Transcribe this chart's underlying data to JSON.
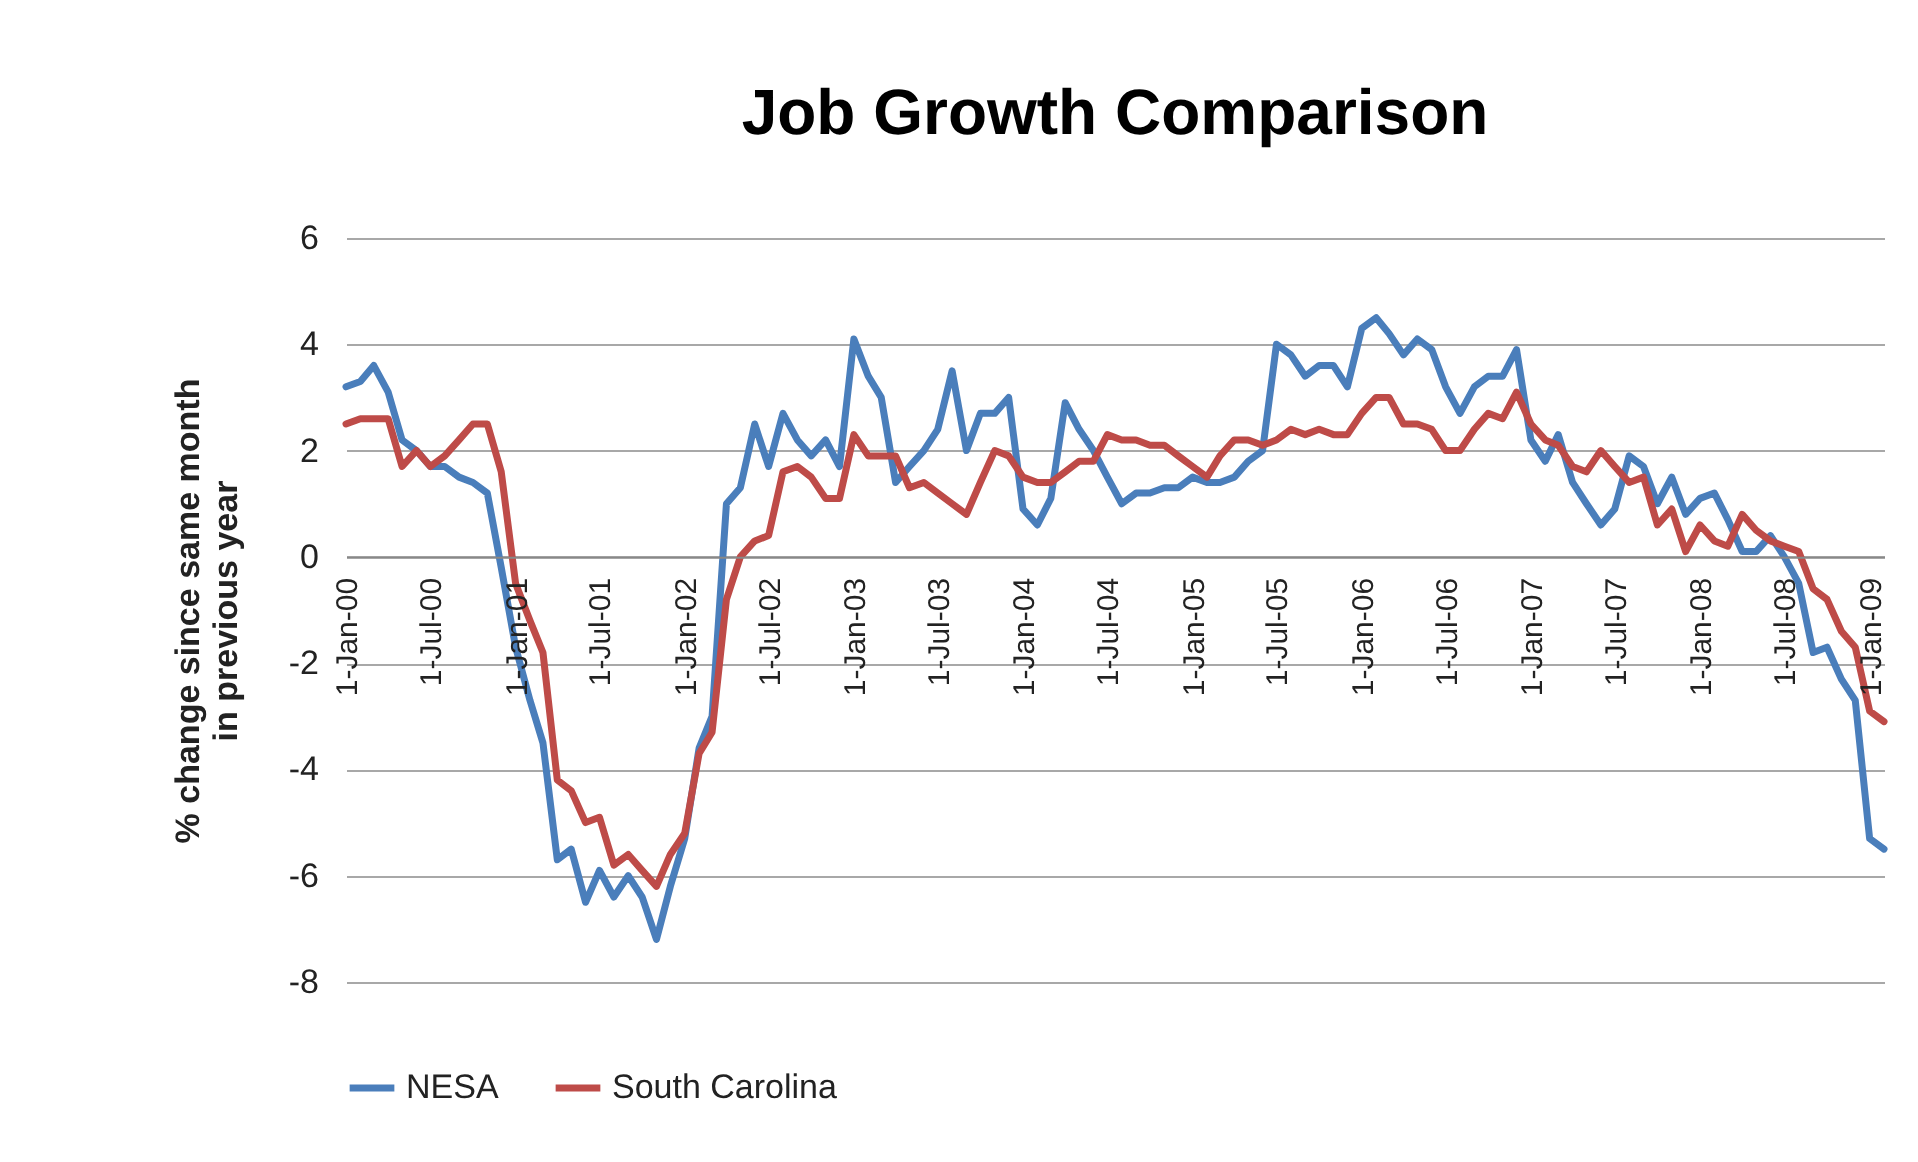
{
  "chart_data": {
    "type": "line",
    "title": "Job Growth Comparison",
    "ylabel": "% change since same month in previous year",
    "xlim": [
      "2000-01",
      "2009-02"
    ],
    "xticks": [
      {
        "value": "2000-01",
        "label": "1-Jan-00"
      },
      {
        "value": "2000-07",
        "label": "1-Jul-00"
      },
      {
        "value": "2001-01",
        "label": "1-Jan-01"
      },
      {
        "value": "2001-07",
        "label": "1-Jul-01"
      },
      {
        "value": "2002-01",
        "label": "1-Jan-02"
      },
      {
        "value": "2002-07",
        "label": "1-Jul-02"
      },
      {
        "value": "2003-01",
        "label": "1-Jan-03"
      },
      {
        "value": "2003-07",
        "label": "1-Jul-03"
      },
      {
        "value": "2004-01",
        "label": "1-Jan-04"
      },
      {
        "value": "2004-07",
        "label": "1-Jul-04"
      },
      {
        "value": "2005-01",
        "label": "1-Jan-05"
      },
      {
        "value": "2005-07",
        "label": "1-Jul-05"
      },
      {
        "value": "2006-01",
        "label": "1-Jan-06"
      },
      {
        "value": "2006-07",
        "label": "1-Jul-06"
      },
      {
        "value": "2007-01",
        "label": "1-Jan-07"
      },
      {
        "value": "2007-07",
        "label": "1-Jul-07"
      },
      {
        "value": "2008-01",
        "label": "1-Jan-08"
      },
      {
        "value": "2008-07",
        "label": "1-Jul-08"
      },
      {
        "value": "2009-01",
        "label": "1-Jan-09"
      }
    ],
    "ylim": [
      -8,
      6
    ],
    "yticks": [
      -8,
      -6,
      -4,
      -2,
      0,
      2,
      4,
      6
    ],
    "grid": "y",
    "legend": "bottom",
    "line_style": "solid",
    "x": [
      "2000-01",
      "2000-02",
      "2000-03",
      "2000-04",
      "2000-05",
      "2000-06",
      "2000-07",
      "2000-08",
      "2000-09",
      "2000-10",
      "2000-11",
      "2000-12",
      "2001-01",
      "2001-02",
      "2001-03",
      "2001-04",
      "2001-05",
      "2001-06",
      "2001-07",
      "2001-08",
      "2001-09",
      "2001-10",
      "2001-11",
      "2001-12",
      "2002-01",
      "2002-02",
      "2002-03",
      "2002-04",
      "2002-05",
      "2002-06",
      "2002-07",
      "2002-08",
      "2002-09",
      "2002-10",
      "2002-11",
      "2002-12",
      "2003-01",
      "2003-02",
      "2003-03",
      "2003-04",
      "2003-05",
      "2003-06",
      "2003-07",
      "2003-08",
      "2003-09",
      "2003-10",
      "2003-11",
      "2003-12",
      "2004-01",
      "2004-02",
      "2004-03",
      "2004-04",
      "2004-05",
      "2004-06",
      "2004-07",
      "2004-08",
      "2004-09",
      "2004-10",
      "2004-11",
      "2004-12",
      "2005-01",
      "2005-02",
      "2005-03",
      "2005-04",
      "2005-05",
      "2005-06",
      "2005-07",
      "2005-08",
      "2005-09",
      "2005-10",
      "2005-11",
      "2005-12",
      "2006-01",
      "2006-02",
      "2006-03",
      "2006-04",
      "2006-05",
      "2006-06",
      "2006-07",
      "2006-08",
      "2006-09",
      "2006-10",
      "2006-11",
      "2006-12",
      "2007-01",
      "2007-02",
      "2007-03",
      "2007-04",
      "2007-05",
      "2007-06",
      "2007-07",
      "2007-08",
      "2007-09",
      "2007-10",
      "2007-11",
      "2007-12",
      "2008-01",
      "2008-02",
      "2008-03",
      "2008-04",
      "2008-05",
      "2008-06",
      "2008-07",
      "2008-08",
      "2008-09",
      "2008-10",
      "2008-11",
      "2008-12",
      "2009-01",
      "2009-02"
    ],
    "series": [
      {
        "name": "NESA",
        "color": "#4a7ebb",
        "values": [
          3.2,
          3.3,
          3.6,
          3.1,
          2.2,
          2.0,
          1.7,
          1.7,
          1.5,
          1.4,
          1.2,
          -0.2,
          -1.7,
          -2.7,
          -3.5,
          -5.7,
          -5.5,
          -6.5,
          -5.9,
          -6.4,
          -6.0,
          -6.4,
          -7.2,
          -6.2,
          -5.3,
          -3.6,
          -3.0,
          1.0,
          1.3,
          2.5,
          1.7,
          2.7,
          2.2,
          1.9,
          2.2,
          1.7,
          4.1,
          3.4,
          3.0,
          1.4,
          1.7,
          2.0,
          2.4,
          3.5,
          2.0,
          2.7,
          2.7,
          3.0,
          0.9,
          0.6,
          1.1,
          2.9,
          2.4,
          2.0,
          1.5,
          1.0,
          1.2,
          1.2,
          1.3,
          1.3,
          1.5,
          1.4,
          1.4,
          1.5,
          1.8,
          2.0,
          4.0,
          3.8,
          3.4,
          3.6,
          3.6,
          3.2,
          4.3,
          4.5,
          4.2,
          3.8,
          4.1,
          3.9,
          3.2,
          2.7,
          3.2,
          3.4,
          3.4,
          3.9,
          2.2,
          1.8,
          2.3,
          1.4,
          1.0,
          0.6,
          0.9,
          1.9,
          1.7,
          1.0,
          1.5,
          0.8,
          1.1,
          1.2,
          0.7,
          0.1,
          0.1,
          0.4,
          0.0,
          -0.5,
          -1.8,
          -1.7,
          -2.3,
          -2.7,
          -5.3,
          -5.5
        ]
      },
      {
        "name": "South Carolina",
        "color": "#be4b48",
        "values": [
          2.5,
          2.6,
          2.6,
          2.6,
          1.7,
          2.0,
          1.7,
          1.9,
          2.2,
          2.5,
          2.5,
          1.6,
          -0.5,
          -1.2,
          -1.8,
          -4.2,
          -4.4,
          -5.0,
          -4.9,
          -5.8,
          -5.6,
          -5.9,
          -6.2,
          -5.6,
          -5.2,
          -3.7,
          -3.3,
          -0.8,
          0.0,
          0.3,
          0.4,
          1.6,
          1.7,
          1.5,
          1.1,
          1.1,
          2.3,
          1.9,
          1.9,
          1.9,
          1.3,
          1.4,
          1.2,
          1.0,
          0.8,
          1.4,
          2.0,
          1.9,
          1.5,
          1.4,
          1.4,
          1.6,
          1.8,
          1.8,
          2.3,
          2.2,
          2.2,
          2.1,
          2.1,
          1.9,
          1.7,
          1.5,
          1.9,
          2.2,
          2.2,
          2.1,
          2.2,
          2.4,
          2.3,
          2.4,
          2.3,
          2.3,
          2.7,
          3.0,
          3.0,
          2.5,
          2.5,
          2.4,
          2.0,
          2.0,
          2.4,
          2.7,
          2.6,
          3.1,
          2.5,
          2.2,
          2.1,
          1.7,
          1.6,
          2.0,
          1.7,
          1.4,
          1.5,
          0.6,
          0.9,
          0.1,
          0.6,
          0.3,
          0.2,
          0.8,
          0.5,
          0.3,
          0.2,
          0.1,
          -0.6,
          -0.8,
          -1.4,
          -1.7,
          -2.9,
          -3.1
        ]
      }
    ]
  }
}
